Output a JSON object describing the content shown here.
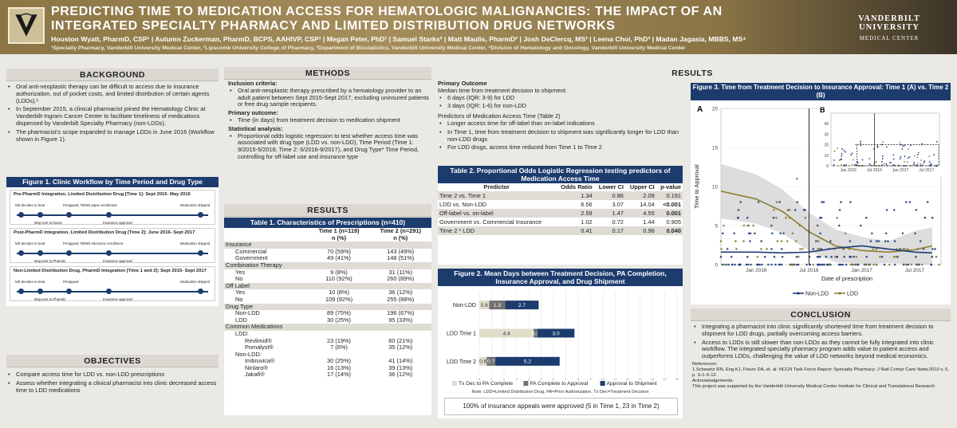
{
  "header": {
    "title": "Predicting Time to Medication Access for Hematologic Malignancies: The Impact of an Integrated Specialty Pharmacy and Limited Distribution Drug Networks",
    "authors": "Houston Wyatt, PharmD, CSP¹ | Autumn Zuckerman, PharmD, BCPS, AAHIVP, CSP¹ | Megan Peter, PhD¹ | Samuel Starks² | Matt Maulis, PharmD² | Josh DeClercq, MS³ | Leena Choi, PhD³ | Madan Jagasia, MBBS, MS⁴",
    "affiliations": "¹Specialty Pharmacy, Vanderbilt University Medical Center, ²Lipscomb University College of Pharmacy, ²Department of Biostatistics, Vanderbilt University Medical Center, ⁴Division of Hematology and Oncology, Vanderbilt University Medical Center",
    "institution_line1": "VANDERBILT UNIVERSITY",
    "institution_line2": "MEDICAL CENTER"
  },
  "background": {
    "heading": "BACKGROUND",
    "bullets": [
      "Oral anti-neoplastic therapy can be difficult to access due to insurance authorization, out of pocket costs, and limited distribution of certain agents (LDDs).¹",
      "In September 2015, a clinical pharmacist joined the Hematology Clinic at Vanderbilt-Ingram Cancer Center to facilitate timeliness of medications dispensed by Vanderbilt Specialty Pharmacy (non-LDDs).",
      "The pharmacist's scope expanded to manage LDDs in June 2016 (Workflow shown in Figure 1)."
    ]
  },
  "figure1": {
    "title": "Figure 1. Clinic Workflow by Time Period and Drug Type",
    "panels": [
      {
        "heading": "Pre-PharmD Integration, Limited Distribution Drug [Time 1]: Sept 2015- May 2016",
        "labels": [
          "MD decides to treat",
          "Msg sent to Nurse",
          "PA/appeal, REMS paper enrollment",
          "Insurance approval",
          "Medication shipped"
        ]
      },
      {
        "heading": "Post-PharmD Integration, Limited Distribution Drug [Time 2]: June 2016- Sept 2017",
        "labels": [
          "MD decides to treat",
          "Msg sent to PharmD",
          "PA/appeal, REMS electronic enrollment",
          "Insurance approval",
          "Medication shipped"
        ]
      },
      {
        "heading": "Non-Limited Distribution Drug, PharmD Integration [Time 1 and 2]: Sept 2015- Sept 2017",
        "labels": [
          "MD decides to treat",
          "Msg sent to PharmD",
          "PA/appeal",
          "Insurance approval",
          "Medication shipped"
        ]
      }
    ]
  },
  "objectives": {
    "heading": "OBJECTIVES",
    "bullets": [
      "Compare access time for LDD vs. non-LDD prescriptions",
      "Assess whether integrating a clinical pharmacist into clinic decreased access time to LDD medications"
    ]
  },
  "methods": {
    "heading": "METHODS",
    "inclusion_label": "Inclusion criteria:",
    "inclusion": "Oral anti-neoplastic therapy prescribed by a hematology provider to an adult patient between Sept 2015-Sept 2017, excluding uninsured patients or free drug sample recipients.",
    "primary_label": "Primary outcome:",
    "primary": "Time (in days) from treatment decision to medication shipment",
    "stats_label": "Statistical analysis:",
    "stats": "Proportional odds logistic regression to test whether access time was associated with drug type (LDD vs. non-LDD), Time Period (Time 1: 9/2015-5/2016; Time 2: 6/2016-9/2017), and Drug Type* Time Period, controlling for off-label use and insurance type"
  },
  "results_mid_heading": "RESULTS",
  "table1": {
    "title": "Table 1. Characteristics of Prescriptions (n=410)",
    "col1": "Time 1 (n=119)",
    "col2": "Time 2 (n=291)",
    "subhead": "n (%)",
    "rows": [
      {
        "label": "Insurance",
        "a": "",
        "b": "",
        "group": true,
        "indent": 0
      },
      {
        "label": "Commercial",
        "a": "70 (59%)",
        "b": "143 (49%)",
        "group": false,
        "indent": 1
      },
      {
        "label": "Government",
        "a": "49 (41%)",
        "b": "148 (51%)",
        "group": false,
        "indent": 1
      },
      {
        "label": "Combination Therapy",
        "a": "",
        "b": "",
        "group": true,
        "indent": 0
      },
      {
        "label": "Yes",
        "a": "9 (8%)",
        "b": "31 (11%)",
        "group": false,
        "indent": 1
      },
      {
        "label": "No",
        "a": "110 (92%)",
        "b": "260 (89%)",
        "group": false,
        "indent": 1
      },
      {
        "label": "Off Label",
        "a": "",
        "b": "",
        "group": true,
        "indent": 0
      },
      {
        "label": "Yes",
        "a": "10 (8%)",
        "b": "36 (12%)",
        "group": false,
        "indent": 1
      },
      {
        "label": "No",
        "a": "109 (92%)",
        "b": "255 (88%)",
        "group": false,
        "indent": 1
      },
      {
        "label": "Drug Type",
        "a": "",
        "b": "",
        "group": true,
        "indent": 0
      },
      {
        "label": "Non-LDD",
        "a": "89 (75%)",
        "b": "196 (67%)",
        "group": false,
        "indent": 1
      },
      {
        "label": "LDD",
        "a": "30 (25%)",
        "b": "95 (33%)",
        "group": false,
        "indent": 1
      },
      {
        "label": "Common Medications",
        "a": "",
        "b": "",
        "group": true,
        "indent": 0
      },
      {
        "label": "LDD:",
        "a": "",
        "b": "",
        "group": false,
        "indent": 1
      },
      {
        "label": "Revlimid®",
        "a": "23 (19%)",
        "b": "60 (21%)",
        "group": false,
        "indent": 2
      },
      {
        "label": "Pomalyst®",
        "a": "7 (6%)",
        "b": "35 (12%)",
        "group": false,
        "indent": 2
      },
      {
        "label": "Non-LDD:",
        "a": "",
        "b": "",
        "group": false,
        "indent": 1
      },
      {
        "label": "Imbruvica®",
        "a": "30 (25%)",
        "b": "41 (14%)",
        "group": false,
        "indent": 2
      },
      {
        "label": "Ninlaro®",
        "a": "16 (13%)",
        "b": "39 (13%)",
        "group": false,
        "indent": 2
      },
      {
        "label": "Jakafi®",
        "a": "17 (14%)",
        "b": "36 (12%)",
        "group": false,
        "indent": 2
      }
    ]
  },
  "results": {
    "heading": "RESULTS",
    "primary_label": "Primary Outcome",
    "primary_text": "Median time from treatment decision to shipment:",
    "primary_bullets": [
      "6 days (IQR: 3-9) for LDD",
      "3 days (IQR: 1-6) for non-LDD"
    ],
    "predictors_label": "Predictors of Medication Access Time (Table 2)",
    "predictors_bullets": [
      "Longer access time for off-label than on-label indications",
      "In Time 1, time from treatment decision to shipment was significantly longer for LDD than non-LDD drugs",
      "For LDD drugs, access time reduced from Time 1 to Time 2"
    ]
  },
  "table2": {
    "title": "Table 2. Proportional Odds Logistic Regression testing predictors of Medication Access Time",
    "headers": [
      "Predictor",
      "Odds Ratio",
      "Lower CI",
      "Upper CI",
      "p-value"
    ],
    "rows": [
      {
        "p": "Time 2 vs. Time 1",
        "or": "1.34",
        "lo": "0.86",
        "hi": "2.09",
        "pv": "0.191",
        "bold": false
      },
      {
        "p": "LDD vs. Non-LDD",
        "or": "6.56",
        "lo": "3.07",
        "hi": "14.04",
        "pv": "<0.001",
        "bold": true
      },
      {
        "p": "Off-label vs. on-label",
        "or": "2.59",
        "lo": "1.47",
        "hi": "4.55",
        "pv": "0.001",
        "bold": true
      },
      {
        "p": "Government vs. Commercial Insurance",
        "or": "1.02",
        "lo": "0.72",
        "hi": "1.44",
        "pv": "0.905",
        "bold": false
      },
      {
        "p": "Time 2 * LDD",
        "or": "0.41",
        "lo": "0.17",
        "hi": "0.96",
        "pv": "0.040",
        "bold": true
      }
    ]
  },
  "figure2": {
    "title": "Figure 2. Mean Days between Treatment Decision, PA Completion, Insurance Approval, and Drug Shipment",
    "note": "Note: LDD=Limited Distribution Drug, PA=Prior Authorization, Tx Dec=Treatment Decision",
    "appeals": "100% of insurance appeals were approved (5 in Time 1, 23 in Time 2)"
  },
  "figure3": {
    "title": "Figure 3. Time from Treatment Decision to Insurance Approval: Time 1 (A) vs. Time 2 (B)",
    "panel_a": "A",
    "panel_b": "B"
  },
  "conclusion": {
    "heading": "CONCLUSION",
    "bullets": [
      "Integrating a pharmacist into clinic significantly shortened time from treatment decision to shipment for LDD drugs, partially overcoming access barriers.",
      "Access to LDDs is still slower than non-LDDs as they cannot be fully integrated into clinic workflow. The integrated specialty pharmacy program adds value to patient access and outperforms LDDs, challenging the value of LDD networks beyond medical economics."
    ],
    "refs_label": "References:",
    "refs": "1.Schwartz RN, Eng KJ, Frieze DA, et. al: NCCN Task Force Report: Specialty Pharmacy: J Natl Compr Canc Netw.2010 v. 6, p. S-1-S-12.",
    "ack_label": "Acknowledgements:",
    "ack": "This project was supported by the Vanderbilt University Medical Center Institute for Clinical and Translational Research"
  },
  "chart_data": [
    {
      "type": "bar",
      "stacked": true,
      "orientation": "horizontal",
      "categories": [
        "Non-LDD",
        "LDD Time 1",
        "LDD Time 2"
      ],
      "series": [
        {
          "name": "Tx Dec to PA Complete",
          "values": [
            0.8,
            4.4,
            0.6
          ],
          "color": "#e2dccb"
        },
        {
          "name": "PA Complete to Approval",
          "values": [
            1.3,
            0.3,
            0.7
          ],
          "color": "#707070"
        },
        {
          "name": "Approval to Shipment",
          "values": [
            2.7,
            3.0,
            5.2
          ],
          "color": "#1d3c6e"
        }
      ],
      "xlim": [
        0,
        16
      ],
      "xticks": [
        "0",
        "1",
        "2",
        "3",
        "4",
        "5",
        "6",
        "7",
        "8",
        "9",
        "10",
        "11",
        "12",
        "13",
        "14",
        "15",
        "16"
      ],
      "grid": true,
      "legend": "bottom"
    },
    {
      "type": "scatter",
      "xlabel": "Date of prescription",
      "ylabel": "Time to Approval",
      "ylim": [
        0,
        20
      ],
      "yticks": [
        "0",
        "5",
        "10",
        "15",
        "20"
      ],
      "xticks": [
        "Jan 2016",
        "Jul 2016",
        "Jan 2017",
        "Jul 2017"
      ],
      "reference_line": "Jul 2016",
      "legend_items": [
        "Non-LDD",
        "LDD"
      ],
      "series_colors": {
        "Non-LDD": "#1d3c7a",
        "LDD": "#8c7f33"
      },
      "trend": {
        "x": [
          "Sep 2015",
          "Jan 2016",
          "Apr 2016",
          "Jul 2016",
          "Oct 2016",
          "Jan 2017",
          "Apr 2017",
          "Jul 2017",
          "Sep 2017"
        ],
        "LDD": [
          9.4,
          8.4,
          6.8,
          4.2,
          2.4,
          1.8,
          1.6,
          1.9,
          2.4
        ],
        "Non-LDD": [
          1.6,
          1.6,
          1.5,
          1.6,
          2.1,
          2.4,
          2.0,
          1.6,
          1.5
        ]
      },
      "inset": {
        "ylim": [
          0,
          50
        ],
        "yticks": [
          "0",
          "10",
          "20",
          "30",
          "40"
        ],
        "xticks": [
          "Jan 2016",
          "Jul 2016",
          "Jan 2017",
          "Jul 2017"
        ]
      }
    }
  ]
}
